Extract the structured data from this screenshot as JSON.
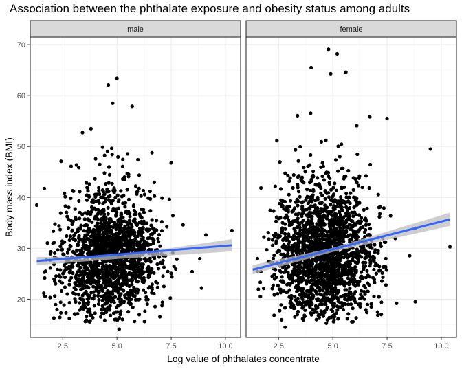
{
  "title": "Association between the phthalate exposure and obesity status among adults",
  "chart_data": {
    "type": "scatter",
    "title": "Association between the phthalate exposure and obesity status among adults",
    "xlabel": "Log value of phthalates concentrate",
    "ylabel": "Body mass index (BMI)",
    "xlim": [
      1.0,
      10.7
    ],
    "ylim": [
      12.5,
      71.5
    ],
    "x_ticks": [
      "2.5",
      "5.0",
      "7.5",
      "10.0"
    ],
    "y_ticks": [
      "20",
      "30",
      "40",
      "50",
      "60",
      "70"
    ],
    "x_tick_values": [
      2.5,
      5.0,
      7.5,
      10.0
    ],
    "y_tick_values": [
      20,
      30,
      40,
      50,
      60,
      70
    ],
    "grid": true,
    "facets": [
      "male",
      "female"
    ],
    "colors": {
      "points": "#000000",
      "fit_line": "#3366ff",
      "confidence_band": "#bdbdbd",
      "strip_fill": "#d9d9d9",
      "grid_major": "#ebebeb",
      "grid_minor": "#f5f5f5"
    },
    "series": [
      {
        "facet": "male",
        "fit": {
          "x": [
            1.3,
            10.3
          ],
          "y": [
            27.5,
            30.6
          ]
        },
        "band": {
          "x": [
            1.3,
            5.0,
            10.3
          ],
          "upper": [
            28.3,
            28.5,
            31.8
          ],
          "lower": [
            26.7,
            27.9,
            29.4
          ]
        },
        "notable_points": [
          {
            "x": 5.0,
            "y": 63.4
          },
          {
            "x": 4.6,
            "y": 62.1
          },
          {
            "x": 4.8,
            "y": 58.5
          },
          {
            "x": 5.7,
            "y": 57.9
          },
          {
            "x": 1.3,
            "y": 38.5
          },
          {
            "x": 10.3,
            "y": 33.5
          },
          {
            "x": 5.1,
            "y": 14.1
          },
          {
            "x": 7.5,
            "y": 46.8
          },
          {
            "x": 3.8,
            "y": 53.5
          },
          {
            "x": 4.9,
            "y": 16.0
          },
          {
            "x": 8.9,
            "y": 22.2
          }
        ],
        "point_cloud": {
          "count": 1750,
          "x_center": 4.7,
          "x_spread": 1.15,
          "y_center": 27.5,
          "y_spread": 5.5,
          "x_range": [
            1.5,
            10.2
          ],
          "y_range": [
            15.5,
            55
          ]
        }
      },
      {
        "facet": "female",
        "fit": {
          "x": [
            1.3,
            10.4
          ],
          "y": [
            25.8,
            35.7
          ]
        },
        "band": {
          "x": [
            1.3,
            5.0,
            10.4
          ],
          "upper": [
            26.7,
            30.1,
            37.0
          ],
          "lower": [
            24.9,
            29.3,
            34.4
          ]
        },
        "notable_points": [
          {
            "x": 4.8,
            "y": 69.1
          },
          {
            "x": 5.2,
            "y": 68.2
          },
          {
            "x": 4.0,
            "y": 65.5
          },
          {
            "x": 4.9,
            "y": 64.3
          },
          {
            "x": 5.6,
            "y": 64.6
          },
          {
            "x": 9.5,
            "y": 49.5
          },
          {
            "x": 10.4,
            "y": 30.3
          },
          {
            "x": 2.8,
            "y": 14.5
          },
          {
            "x": 8.8,
            "y": 19.5
          },
          {
            "x": 7.5,
            "y": 55.5
          },
          {
            "x": 4.7,
            "y": 15.3
          }
        ],
        "point_cloud": {
          "count": 2100,
          "x_center": 4.6,
          "x_spread": 1.1,
          "y_center": 28.0,
          "y_spread": 6.5,
          "x_range": [
            1.5,
            10.2
          ],
          "y_range": [
            15.5,
            58
          ]
        }
      }
    ]
  }
}
